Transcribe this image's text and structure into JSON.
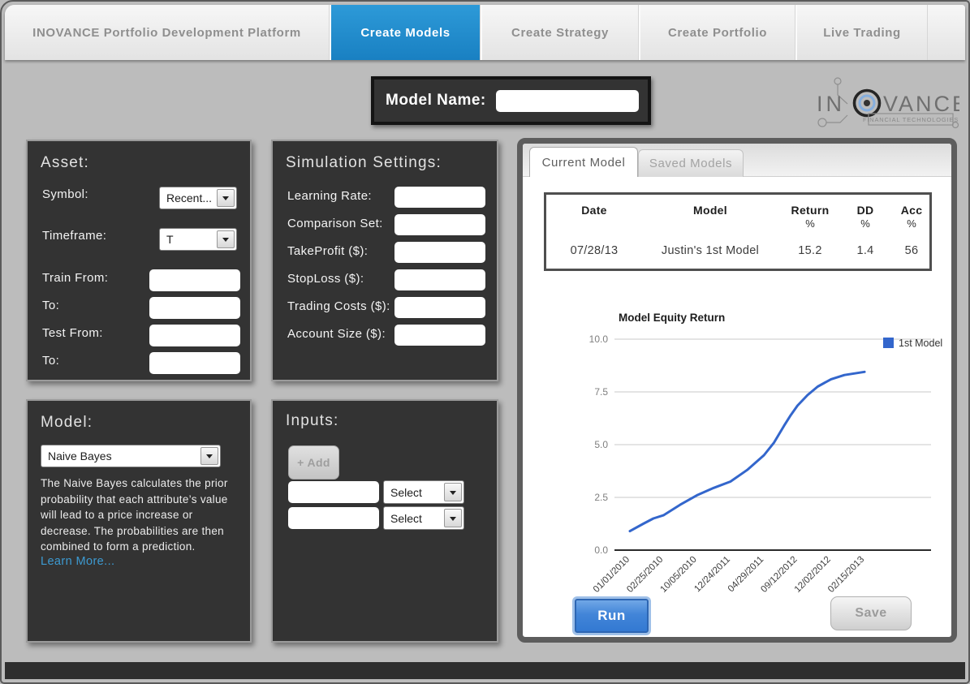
{
  "topbar": {
    "brand": "INOVANCE Portfolio Development Platform",
    "tabs": [
      {
        "label": "Create Models",
        "active": true
      },
      {
        "label": "Create Strategy",
        "active": false
      },
      {
        "label": "Create Portfolio",
        "active": false
      },
      {
        "label": "Live Trading",
        "active": false
      }
    ]
  },
  "model_name": {
    "label": "Model Name:",
    "value": ""
  },
  "logo": {
    "part1": "IN",
    "part2": "VANCE",
    "subtitle": "FINANCIAL TECHNOLOGIES"
  },
  "asset": {
    "title": "Asset:",
    "symbol_label": "Symbol:",
    "symbol_value": "Recent...",
    "timeframe_label": "Timeframe:",
    "timeframe_value": "T",
    "train_from_label": "Train From:",
    "train_from_value": "",
    "train_to_label": "To:",
    "train_to_value": "",
    "test_from_label": "Test From:",
    "test_from_value": "",
    "test_to_label": "To:",
    "test_to_value": ""
  },
  "simulation": {
    "title": "Simulation Settings:",
    "fields": [
      {
        "label": "Learning Rate:",
        "value": ""
      },
      {
        "label": "Comparison Set:",
        "value": ""
      },
      {
        "label": "TakeProfit ($):",
        "value": ""
      },
      {
        "label": "StopLoss ($):",
        "value": ""
      },
      {
        "label": "Trading Costs ($):",
        "value": ""
      },
      {
        "label": "Account Size ($):",
        "value": ""
      }
    ]
  },
  "model": {
    "title": "Model:",
    "selected": "Naive Bayes",
    "description": "The Naive Bayes calculates the prior probability that each attribute’s value will lead to a price increase or decrease. The probabilities are then combined to form a prediction.",
    "learn_more": "Learn More..."
  },
  "inputs": {
    "title": "Inputs:",
    "add_label": "+ Add",
    "rows": [
      {
        "value": "",
        "select": "Select"
      },
      {
        "value": "",
        "select": "Select"
      }
    ]
  },
  "results": {
    "tabs": [
      {
        "label": "Current Model",
        "active": true
      },
      {
        "label": "Saved Models",
        "active": false
      }
    ],
    "table": {
      "columns": [
        {
          "l1": "Date",
          "l2": ""
        },
        {
          "l1": "Model",
          "l2": ""
        },
        {
          "l1": "Return",
          "l2": "%"
        },
        {
          "l1": "DD",
          "l2": "%"
        },
        {
          "l1": "Acc",
          "l2": "%"
        }
      ],
      "rows": [
        [
          "07/28/13",
          "Justin's 1st Model",
          "15.2",
          "1.4",
          "56"
        ]
      ]
    },
    "run_label": "Run",
    "save_label": "Save"
  },
  "chart_data": {
    "type": "line",
    "title": "Model Equity Return",
    "xlabel": "",
    "ylabel": "",
    "ylim": [
      0,
      10
    ],
    "y_ticks": [
      0,
      2.5,
      5,
      7.5,
      10
    ],
    "x_labels": [
      "01/01/2010",
      "02/25/2010",
      "10/05/2010",
      "12/24/2011",
      "04/29/2011",
      "09/12/2012",
      "12/02/2012",
      "02/15/2013"
    ],
    "grid": true,
    "legend_position": "right",
    "series": [
      {
        "name": "1st Model",
        "color": "#3366cc",
        "points": [
          {
            "x": 0.0,
            "y": 0.9
          },
          {
            "x": 0.4,
            "y": 1.25
          },
          {
            "x": 0.7,
            "y": 1.5
          },
          {
            "x": 1.0,
            "y": 1.65
          },
          {
            "x": 1.5,
            "y": 2.15
          },
          {
            "x": 2.0,
            "y": 2.6
          },
          {
            "x": 2.5,
            "y": 2.95
          },
          {
            "x": 3.0,
            "y": 3.25
          },
          {
            "x": 3.5,
            "y": 3.8
          },
          {
            "x": 4.0,
            "y": 4.5
          },
          {
            "x": 4.3,
            "y": 5.1
          },
          {
            "x": 4.6,
            "y": 5.9
          },
          {
            "x": 4.8,
            "y": 6.4
          },
          {
            "x": 5.0,
            "y": 6.85
          },
          {
            "x": 5.3,
            "y": 7.35
          },
          {
            "x": 5.6,
            "y": 7.75
          },
          {
            "x": 6.0,
            "y": 8.1
          },
          {
            "x": 6.4,
            "y": 8.3
          },
          {
            "x": 7.0,
            "y": 8.45
          }
        ]
      }
    ]
  }
}
